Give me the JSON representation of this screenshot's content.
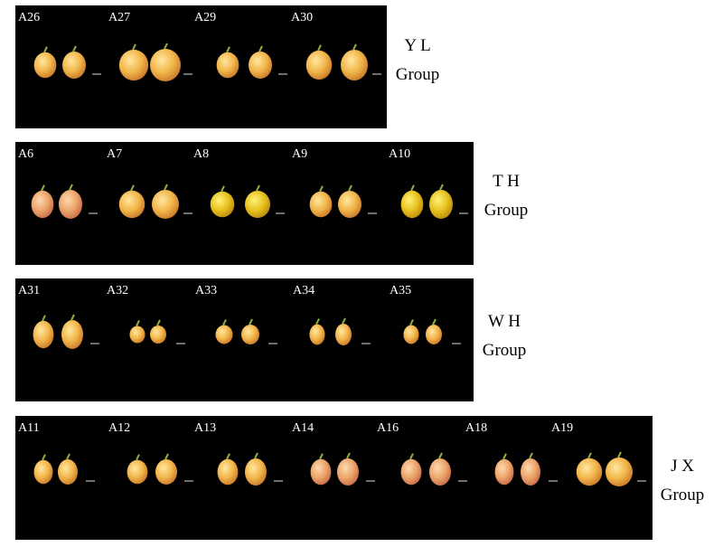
{
  "groups": [
    {
      "name": "Y L",
      "caption": "Group",
      "panels": [
        "A26",
        "A27",
        "A29",
        "A30"
      ]
    },
    {
      "name": "T H",
      "caption": "Group",
      "panels": [
        "A6",
        "A7",
        "A8",
        "A9",
        "A10"
      ]
    },
    {
      "name": "W H",
      "caption": "Group",
      "panels": [
        "A31",
        "A32",
        "A33",
        "A34",
        "A35"
      ]
    },
    {
      "name": "J X",
      "caption": "Group",
      "panels": [
        "A11",
        "A12",
        "A13",
        "A14",
        "A16",
        "A18",
        "A19"
      ]
    }
  ]
}
